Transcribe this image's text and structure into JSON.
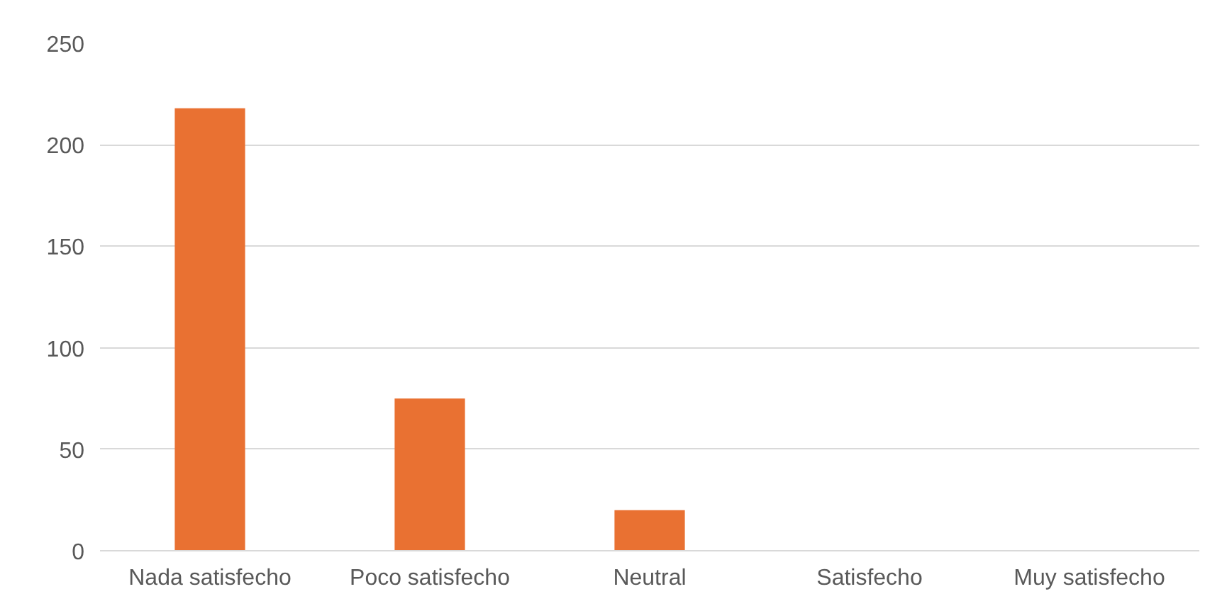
{
  "chart_data": {
    "type": "bar",
    "categories": [
      "Nada satisfecho",
      "Poco satisfecho",
      "Neutral",
      "Satisfecho",
      "Muy satisfecho"
    ],
    "values": [
      218,
      75,
      20,
      0,
      0
    ],
    "color": "#e97132",
    "ylim": [
      0,
      250
    ],
    "yticks": [
      0,
      50,
      100,
      150,
      200,
      250
    ],
    "grid": "y"
  }
}
